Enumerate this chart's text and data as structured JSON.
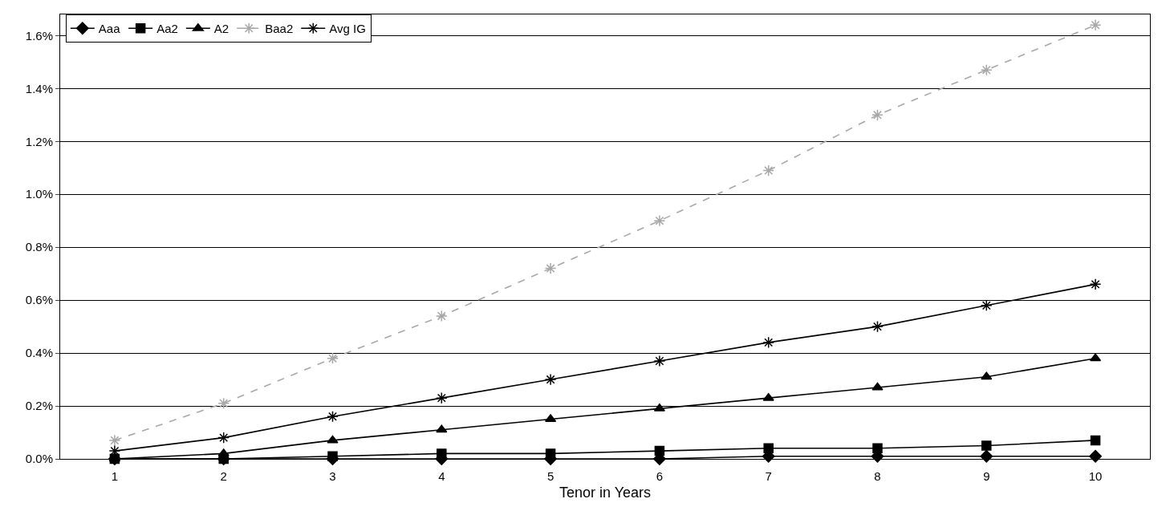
{
  "chart_data": {
    "type": "line",
    "xlabel": "Tenor in Years",
    "x": [
      1,
      2,
      3,
      4,
      5,
      6,
      7,
      8,
      9,
      10
    ],
    "xlim": [
      0.5,
      10.5
    ],
    "xticks": [
      1,
      2,
      3,
      4,
      5,
      6,
      7,
      8,
      9,
      10
    ],
    "ylim": [
      0,
      1.68
    ],
    "yticks": [
      {
        "value": 0,
        "label": "0.0%"
      },
      {
        "value": 0.2,
        "label": "0.2%"
      },
      {
        "value": 0.4,
        "label": "0.4%"
      },
      {
        "value": 0.6,
        "label": "0.6%"
      },
      {
        "value": 0.8,
        "label": "0.8%"
      },
      {
        "value": 1.0,
        "label": "1.0%"
      },
      {
        "value": 1.2,
        "label": "1.2%"
      },
      {
        "value": 1.4,
        "label": "1.4%"
      },
      {
        "value": 1.6,
        "label": "1.6%"
      }
    ],
    "grid": "y",
    "legend": "top left",
    "series": [
      {
        "name": "Aaa",
        "color": "#000000",
        "marker": "diamond",
        "line_style": "solid",
        "values": [
          0,
          0,
          0,
          0,
          0,
          0,
          0.01,
          0.01,
          0.01,
          0.01
        ]
      },
      {
        "name": "Aa2",
        "color": "#000000",
        "marker": "square",
        "line_style": "solid",
        "values": [
          0,
          0,
          0.01,
          0.02,
          0.02,
          0.03,
          0.04,
          0.04,
          0.05,
          0.07
        ]
      },
      {
        "name": "A2",
        "color": "#000000",
        "marker": "triangle",
        "line_style": "solid",
        "values": [
          0,
          0.02,
          0.07,
          0.11,
          0.15,
          0.19,
          0.23,
          0.27,
          0.31,
          0.38
        ]
      },
      {
        "name": "Baa2",
        "color": "#a8a8a8",
        "marker": "cross",
        "line_style": "dashed",
        "values": [
          0.07,
          0.21,
          0.38,
          0.54,
          0.72,
          0.9,
          1.09,
          1.3,
          1.47,
          1.64
        ]
      },
      {
        "name": "Avg IG",
        "color": "#000000",
        "marker": "cross",
        "line_style": "solid",
        "values": [
          0.03,
          0.08,
          0.16,
          0.23,
          0.3,
          0.37,
          0.44,
          0.5,
          0.58,
          0.66
        ]
      }
    ]
  }
}
